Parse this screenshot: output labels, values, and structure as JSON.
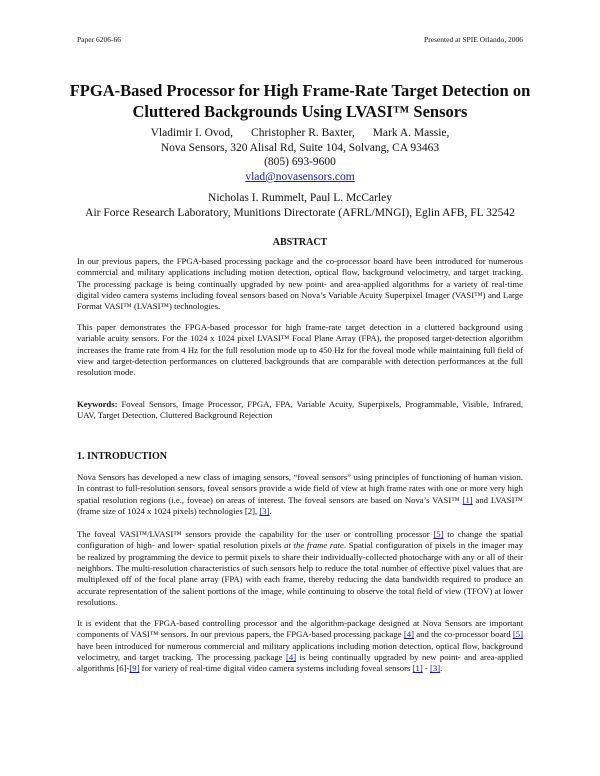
{
  "header": {
    "left": "Paper 6206-66",
    "right": "Presented at SPIE Orlando, 2006"
  },
  "title": [
    "FPGA-Based Processor for High Frame-Rate Target Detection on",
    "Cluttered Backgrounds Using LVASI™ Sensors"
  ],
  "authors": {
    "names": [
      "Vladimir I. Ovod,",
      "Christopher R. Baxter,",
      "Mark A. Massie,"
    ],
    "affiliation": "Nova Sensors, 320 Alisal Rd, Suite 104, Solvang, CA 93463",
    "phone": "(805) 693-9600",
    "email": "vlad@novasensors.com",
    "names2": "Nicholas I. Rummelt, Paul L. McCarley",
    "affiliation2": "Air Force Research Laboratory, Munitions Directorate (AFRL/MNGI), Eglin AFB, FL 32542"
  },
  "abstract": {
    "heading": "ABSTRACT",
    "paragraphs": [
      [
        "In our previous papers, the FPGA-based processing package and the co-processor board have been introduced for numerous commercial and military applications including motion detection, optical flow, background velocimetry, and target tracking. The processing package is being continually upgraded by new point- and area-applied algorithms for a variety of real-time digital video camera systems including foveal sensors based on Nova’s Variable Acuity Superpixel Imager (VASI™) and Large Format VASI™ (LVASI™) technologies."
      ],
      [
        "This paper demonstrates the FPGA-based processor for high frame-rate target detection in a cluttered background using variable acuity sensors. For the 1024 x 1024 pixel LVASI™ Focal Plane Array (FPA), the proposed target-detection algorithm increases the frame rate from 4 Hz for the full resolution mode up to 450 Hz for the foveal mode while maintaining full field of view and target-detection performances on cluttered backgrounds that are comparable with detection performances at the full resolution mode."
      ],
      [
        {
          "text": "Keywords:",
          "style": "bold"
        },
        " Foveal Sensors, Image Processor, FPGA, FPA, Variable Acuity, Superpixels, Programmable, Visible, Infrared, UAV, Target Detection, Cluttered Background Rejection"
      ]
    ]
  },
  "introduction": {
    "heading": "1.   INTRODUCTION",
    "paragraphs": [
      [
        "Nova Sensors has developed a new class of imaging sensors, “foveal sensors” using principles of functioning of human vision. In contrast to full-resolution sensors, foveal sensors provide a wide field of view at high frame rates with one or more very high spatial resolution regions (i.e., foveae) on areas of interest. The foveal sensors are based on Nova’s VASI™ ",
        {
          "text": "[1]",
          "style": "link"
        },
        " and LVASI™ (frame size of 1024 x 1024 pixels) technologies [2], ",
        {
          "text": "[3]",
          "style": "link"
        },
        "."
      ],
      [
        "The foveal VASI™/LVASI™ sensors provide the capability for the user or controlling processor ",
        {
          "text": "[5]",
          "style": "link"
        },
        " to change the spatial configuration of high- and lower- spatial resolution pixels ",
        {
          "text": "at the frame rate",
          "style": "italic"
        },
        ". Spatial configuration of pixels in the imager may be realized by programming the device to permit pixels to share their individually-collected photocharge with any or all of their neighbors. The multi-resolution characteristics of such sensors help to reduce the total number of effective pixel values that are multiplexed off of the focal plane array (FPA) with each frame, thereby reducing the data bandwidth required to produce an accurate representation of the salient portions of the image, while continuing to observe the total field of view (TFOV) at lower resolutions."
      ],
      [
        "It is evident that the FPGA-based controlling processor and the algorithm-package designed at Nova Sensors are important components of VASI™ sensors. In our previous papers, the FPGA-based processing package ",
        {
          "text": "[4]",
          "style": "link"
        },
        " and the co-processor board ",
        {
          "text": "[5]",
          "style": "link"
        },
        " have been introduced for numerous commercial and military applications including motion detection, optical flow, background velocimetry, and target tracking. The processing package ",
        {
          "text": "[4]",
          "style": "link"
        },
        " is being continually upgraded by new point- and area-applied algorithms [6]-",
        {
          "text": "[9]",
          "style": "link"
        },
        " for variety of real-time digital video camera systems including foveal sensors ",
        {
          "text": "[1]",
          "style": "link"
        },
        " - ",
        {
          "text": "[3]",
          "style": "link"
        },
        "."
      ]
    ]
  }
}
